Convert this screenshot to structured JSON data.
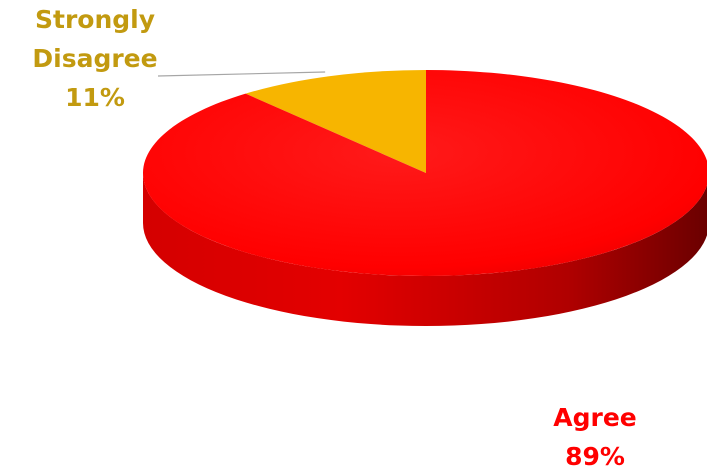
{
  "chart_data": {
    "type": "pie",
    "style": "3d",
    "slices": [
      {
        "label": "Strongly Disagree",
        "value": 11,
        "value_label": "11%",
        "color": "#f7b500",
        "label_color": "#c29a10"
      },
      {
        "label": "Agree",
        "value": 89,
        "value_label": "89%",
        "color": "#ff0000",
        "label_color": "#ff0000"
      }
    ],
    "legend": "none",
    "grid": false
  },
  "labels": {
    "disagree_line1": "Strongly",
    "disagree_line2": "Disagree",
    "disagree_pct": "11%",
    "agree_line1": "Agree",
    "agree_pct": "89%"
  }
}
